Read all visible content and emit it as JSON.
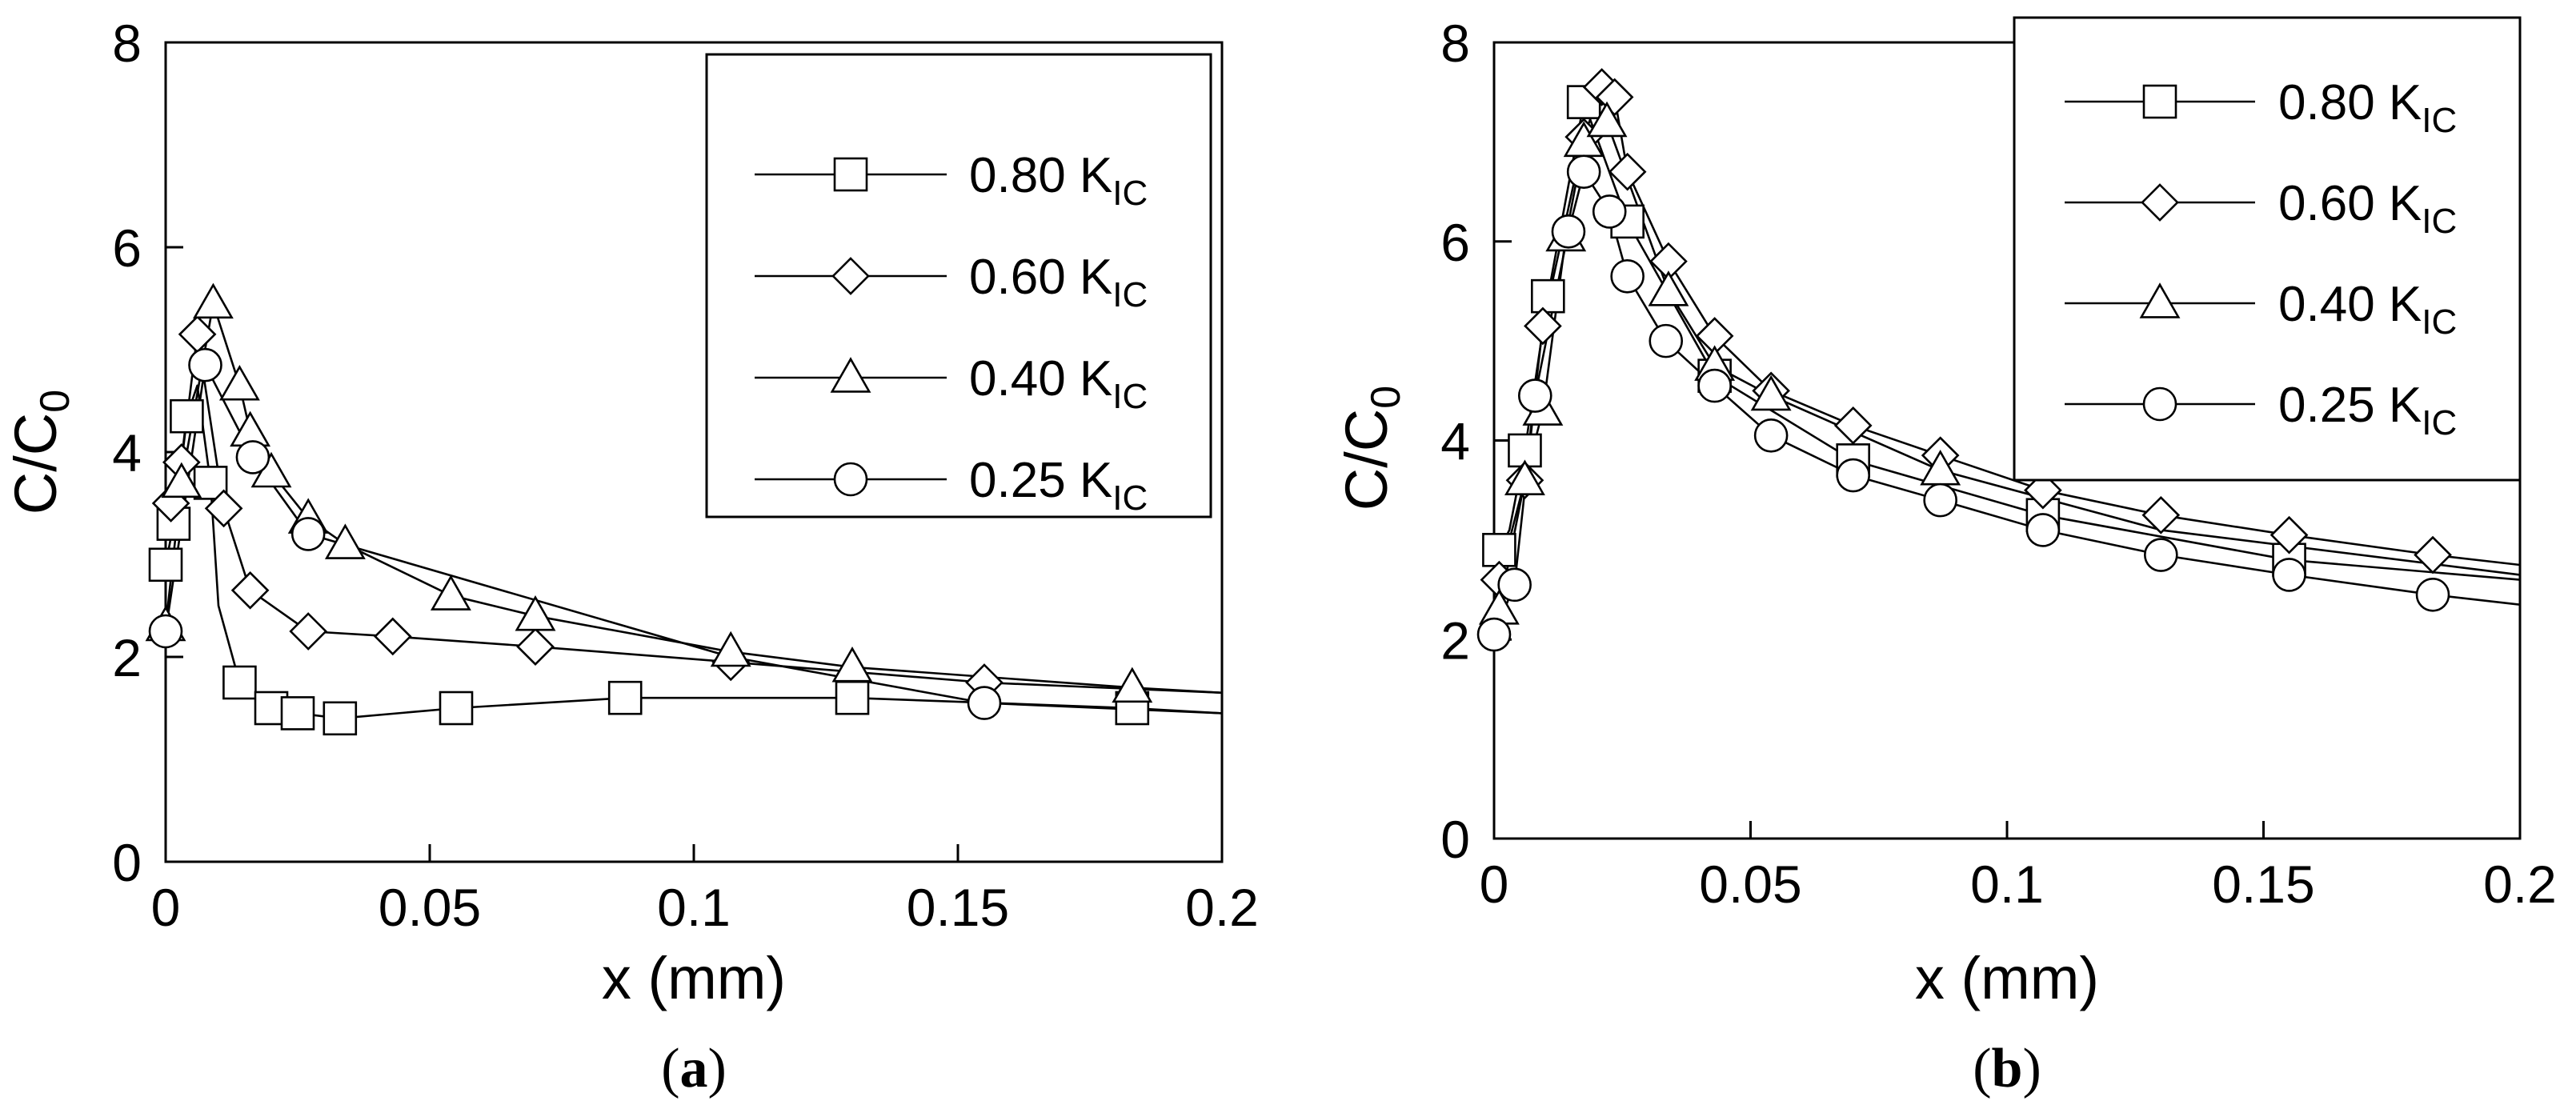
{
  "legend": {
    "labels": [
      "0.80 K",
      "0.60 K",
      "0.40 K",
      "0.25 K"
    ],
    "subscripts": [
      "IC",
      "IC",
      "IC",
      "IC"
    ]
  },
  "chart_data": [
    {
      "type": "line",
      "panel_label": "(a)",
      "panel_letter": "a",
      "xlabel": "x (mm)",
      "ylabel": "C/C",
      "ylabel_sub": "0",
      "xlim": [
        0,
        0.2
      ],
      "ylim": [
        0,
        8
      ],
      "xticks": [
        0,
        0.05,
        0.1,
        0.15,
        0.2
      ],
      "xtick_labels": [
        "0",
        "0.05",
        "0.1",
        "0.15",
        "0.2"
      ],
      "yticks": [
        0,
        2,
        4,
        6,
        8
      ],
      "ytick_labels": [
        "0",
        "2",
        "4",
        "6",
        "8"
      ],
      "legend_position": "top-right",
      "series": [
        {
          "name": "0.80 KIC",
          "marker": "square",
          "x": [
            0.0,
            0.0015,
            0.004,
            0.0085,
            0.014,
            0.02,
            0.025,
            0.033,
            0.055,
            0.087,
            0.13,
            0.183
          ],
          "y": [
            2.9,
            3.3,
            4.35,
            3.7,
            1.75,
            1.5,
            1.45,
            1.4,
            1.5,
            1.6,
            1.6,
            1.5
          ],
          "line_x": [
            0.0,
            0.0015,
            0.004,
            0.006,
            0.0085,
            0.01,
            0.014,
            0.02,
            0.025,
            0.033,
            0.055,
            0.087,
            0.13,
            0.183,
            0.2
          ],
          "line_y": [
            2.9,
            3.3,
            4.35,
            4.65,
            3.7,
            2.5,
            1.75,
            1.5,
            1.45,
            1.4,
            1.5,
            1.6,
            1.6,
            1.5,
            1.45
          ]
        },
        {
          "name": "0.60 KIC",
          "marker": "diamond",
          "x": [
            0.001,
            0.003,
            0.006,
            0.011,
            0.016,
            0.027,
            0.043,
            0.07,
            0.107,
            0.155
          ],
          "y": [
            3.5,
            3.9,
            5.15,
            3.45,
            2.65,
            2.25,
            2.2,
            2.1,
            1.95,
            1.75
          ],
          "line_x": [
            0.001,
            0.003,
            0.006,
            0.011,
            0.016,
            0.027,
            0.043,
            0.07,
            0.107,
            0.155,
            0.2
          ],
          "line_y": [
            3.5,
            3.9,
            5.15,
            3.45,
            2.65,
            2.25,
            2.2,
            2.1,
            1.95,
            1.75,
            1.65
          ]
        },
        {
          "name": "0.40 KIC",
          "marker": "triangle",
          "x": [
            0.0,
            0.003,
            0.009,
            0.014,
            0.016,
            0.02,
            0.027,
            0.034,
            0.054,
            0.07,
            0.107,
            0.13,
            0.183
          ],
          "y": [
            2.3,
            3.7,
            5.45,
            4.65,
            4.2,
            3.8,
            3.35,
            3.1,
            2.6,
            2.4,
            2.05,
            1.9,
            1.7
          ],
          "line_x": [
            0.0,
            0.003,
            0.009,
            0.014,
            0.016,
            0.02,
            0.027,
            0.034,
            0.054,
            0.07,
            0.107,
            0.13,
            0.183,
            0.2
          ],
          "line_y": [
            2.3,
            3.7,
            5.45,
            4.65,
            4.2,
            3.8,
            3.35,
            3.1,
            2.6,
            2.4,
            2.05,
            1.9,
            1.7,
            1.65
          ]
        },
        {
          "name": "0.25 KIC",
          "marker": "circle",
          "x": [
            0.0,
            0.0075,
            0.0165,
            0.027,
            0.155
          ],
          "y": [
            2.25,
            4.85,
            3.95,
            3.2,
            1.55
          ],
          "line_x": [
            0.0,
            0.0075,
            0.0165,
            0.027,
            0.107,
            0.155,
            0.2
          ],
          "line_y": [
            2.25,
            4.85,
            3.95,
            3.2,
            2.0,
            1.55,
            1.45
          ]
        }
      ]
    },
    {
      "type": "line",
      "panel_label": "(b)",
      "panel_letter": "b",
      "xlabel": "x (mm)",
      "ylabel": "C/C",
      "ylabel_sub": "0",
      "xlim": [
        0,
        0.2
      ],
      "ylim": [
        0,
        8
      ],
      "xticks": [
        0,
        0.05,
        0.1,
        0.15,
        0.2
      ],
      "xtick_labels": [
        "0",
        "0.05",
        "0.1",
        "0.15",
        "0.2"
      ],
      "yticks": [
        0,
        2,
        4,
        6,
        8
      ],
      "ytick_labels": [
        "0",
        "2",
        "4",
        "6",
        "8"
      ],
      "legend_position": "top-right",
      "series": [
        {
          "name": "0.80 KIC",
          "marker": "square",
          "x": [
            0.001,
            0.006,
            0.0105,
            0.0175,
            0.026,
            0.043,
            0.07,
            0.107,
            0.155
          ],
          "y": [
            2.9,
            3.9,
            5.45,
            7.4,
            6.2,
            4.65,
            3.8,
            3.25,
            2.8
          ],
          "line_x": [
            0.001,
            0.003,
            0.006,
            0.0105,
            0.0175,
            0.026,
            0.043,
            0.07,
            0.107,
            0.155,
            0.2
          ],
          "line_y": [
            2.9,
            3.1,
            3.9,
            5.45,
            7.4,
            6.2,
            4.65,
            3.8,
            3.25,
            2.8,
            2.6
          ]
        },
        {
          "name": "0.60 KIC",
          "marker": "diamond",
          "x": [
            0.001,
            0.006,
            0.0095,
            0.0175,
            0.021,
            0.0235,
            0.026,
            0.034,
            0.043,
            0.054,
            0.07,
            0.087,
            0.107,
            0.13,
            0.155,
            0.183
          ],
          "y": [
            2.6,
            3.6,
            5.15,
            7.05,
            7.55,
            7.45,
            6.7,
            5.8,
            5.05,
            4.5,
            4.15,
            3.85,
            3.5,
            3.25,
            3.05,
            2.85
          ],
          "line_x": [
            0.001,
            0.006,
            0.0095,
            0.0175,
            0.021,
            0.0235,
            0.026,
            0.034,
            0.043,
            0.054,
            0.07,
            0.087,
            0.107,
            0.13,
            0.155,
            0.183,
            0.2
          ],
          "line_y": [
            2.6,
            3.6,
            5.15,
            7.05,
            7.55,
            7.45,
            6.7,
            5.8,
            5.05,
            4.5,
            4.15,
            3.85,
            3.5,
            3.25,
            3.05,
            2.85,
            2.75
          ]
        },
        {
          "name": "0.40 KIC",
          "marker": "triangle",
          "x": [
            0.001,
            0.006,
            0.0095,
            0.014,
            0.0175,
            0.022,
            0.034,
            0.043,
            0.054,
            0.087
          ],
          "y": [
            2.3,
            3.6,
            4.3,
            6.05,
            7.0,
            7.2,
            5.5,
            4.75,
            4.45,
            3.7
          ],
          "line_x": [
            0.001,
            0.006,
            0.0095,
            0.014,
            0.0175,
            0.022,
            0.034,
            0.043,
            0.054,
            0.087,
            0.13,
            0.2
          ],
          "line_y": [
            2.3,
            3.6,
            4.3,
            6.05,
            7.0,
            7.2,
            5.5,
            4.75,
            4.45,
            3.7,
            3.1,
            2.65
          ]
        },
        {
          "name": "0.25 KIC",
          "marker": "circle",
          "x": [
            0.0,
            0.004,
            0.008,
            0.0145,
            0.0175,
            0.0225,
            0.026,
            0.0335,
            0.043,
            0.054,
            0.07,
            0.087,
            0.107,
            0.13,
            0.155,
            0.183
          ],
          "y": [
            2.05,
            2.55,
            4.45,
            6.1,
            6.7,
            6.3,
            5.65,
            5.0,
            4.55,
            4.05,
            3.65,
            3.4,
            3.1,
            2.85,
            2.65,
            2.45
          ],
          "line_x": [
            0.0,
            0.004,
            0.008,
            0.0145,
            0.0175,
            0.0225,
            0.026,
            0.0335,
            0.043,
            0.054,
            0.07,
            0.087,
            0.107,
            0.13,
            0.155,
            0.183,
            0.2
          ],
          "line_y": [
            2.05,
            2.55,
            4.45,
            6.1,
            6.7,
            6.3,
            5.65,
            5.0,
            4.55,
            4.05,
            3.65,
            3.4,
            3.1,
            2.85,
            2.65,
            2.45,
            2.35
          ]
        }
      ]
    }
  ]
}
